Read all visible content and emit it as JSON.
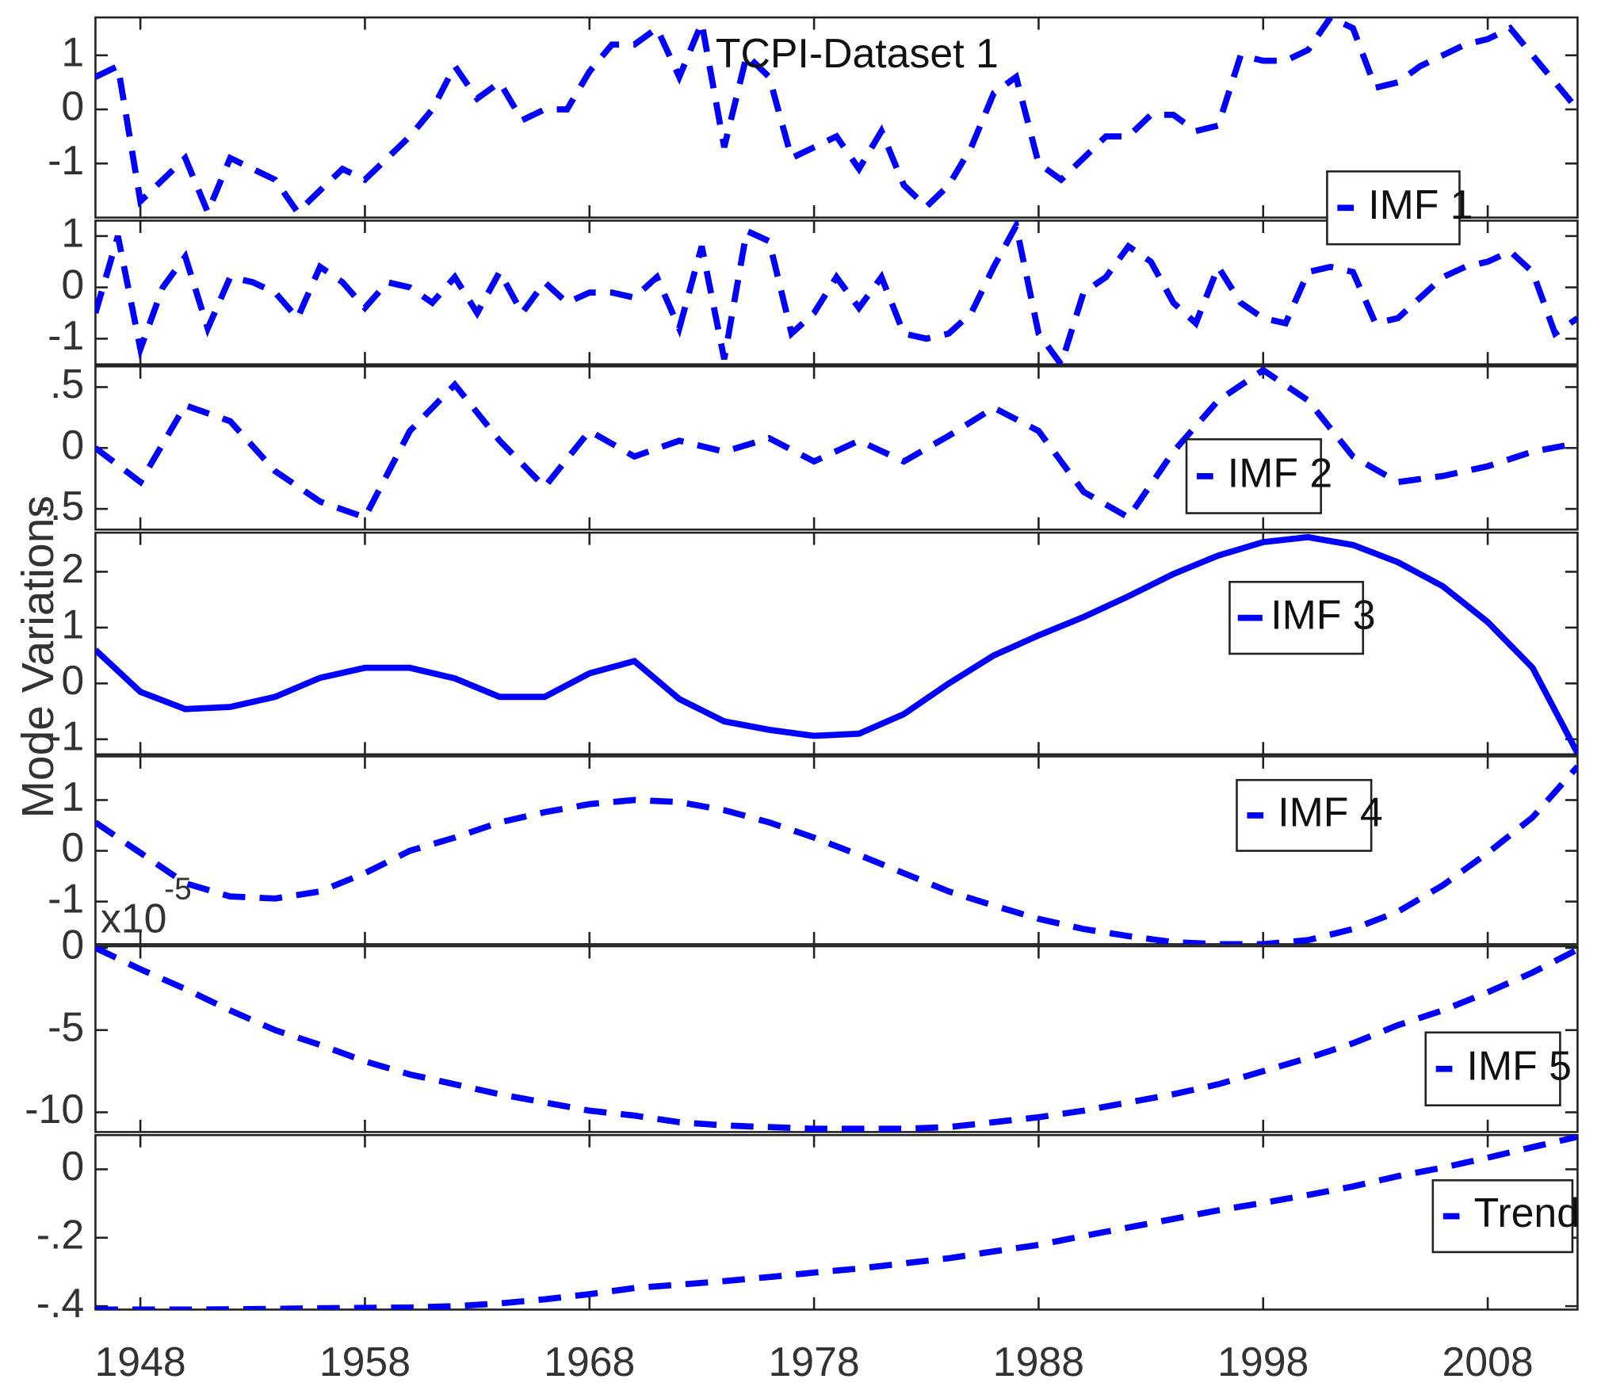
{
  "chart_data": [
    {
      "type": "line",
      "title": "TCPI-Dataset 1",
      "x": [
        1946,
        1947,
        1948,
        1949,
        1950,
        1951,
        1952,
        1953,
        1954,
        1955,
        1956,
        1957,
        1958,
        1959,
        1960,
        1961,
        1962,
        1963,
        1964,
        1965,
        1966,
        1967,
        1968,
        1969,
        1970,
        1971,
        1972,
        1973,
        1974,
        1975,
        1976,
        1977,
        1978,
        1979,
        1980,
        1981,
        1982,
        1983,
        1984,
        1985,
        1986,
        1987,
        1988,
        1989,
        1990,
        1991,
        1992,
        1993,
        1994,
        1995,
        1996,
        1997,
        1998,
        1999,
        2000,
        2001,
        2002,
        2003,
        2004,
        2005,
        2006,
        2007,
        2008,
        2009,
        2010,
        2011,
        2012
      ],
      "xlim": [
        1946,
        2012
      ],
      "ylim": [
        -2,
        1.7
      ],
      "yticks": [
        -1,
        0,
        1
      ],
      "series": [
        {
          "color": "#0000ff",
          "dash": "dashed",
          "values": [
            0.6,
            0.8,
            -1.7,
            -1.3,
            -0.9,
            -1.9,
            -0.9,
            -1.1,
            -1.3,
            -1.9,
            -1.5,
            -1.1,
            -1.3,
            -0.9,
            -0.5,
            0.0,
            0.8,
            0.2,
            0.5,
            -0.2,
            0.0,
            0.0,
            0.7,
            1.2,
            1.2,
            1.5,
            0.6,
            1.6,
            -0.7,
            1.0,
            0.6,
            -0.9,
            -0.7,
            -0.5,
            -1.1,
            -0.4,
            -1.4,
            -1.8,
            -1.4,
            -0.7,
            0.3,
            0.6,
            -1.0,
            -1.3,
            -0.9,
            -0.5,
            -0.5,
            -0.1,
            -0.1,
            -0.4,
            -0.3,
            1.0,
            0.9,
            0.9,
            1.1,
            1.7,
            1.5,
            0.4,
            0.5,
            0.8,
            1.0,
            1.2,
            1.3,
            1.5,
            1.0,
            0.5,
            0.0
          ]
        }
      ]
    },
    {
      "type": "line",
      "x": [
        1946,
        1947,
        1948,
        1949,
        1950,
        1951,
        1952,
        1953,
        1954,
        1955,
        1956,
        1957,
        1958,
        1959,
        1960,
        1961,
        1962,
        1963,
        1964,
        1965,
        1966,
        1967,
        1968,
        1969,
        1970,
        1971,
        1972,
        1973,
        1974,
        1975,
        1976,
        1977,
        1978,
        1979,
        1980,
        1981,
        1982,
        1983,
        1984,
        1985,
        1986,
        1987,
        1988,
        1989,
        1990,
        1991,
        1992,
        1993,
        1994,
        1995,
        1996,
        1997,
        1998,
        1999,
        2000,
        2001,
        2002,
        2003,
        2004,
        2005,
        2006,
        2007,
        2008,
        2009,
        2010,
        2011,
        2012
      ],
      "xlim": [
        1946,
        2012
      ],
      "ylim": [
        -1.5,
        1.3
      ],
      "yticks": [
        -1,
        0,
        1
      ],
      "series": [
        {
          "name": "IMF 1",
          "color": "#0000ff",
          "dash": "dashed",
          "values": [
            -0.5,
            1.0,
            -1.2,
            0.0,
            0.6,
            -0.8,
            0.2,
            0.1,
            -0.1,
            -0.6,
            0.4,
            0.1,
            -0.4,
            0.1,
            0.0,
            -0.3,
            0.2,
            -0.5,
            0.3,
            -0.5,
            0.1,
            -0.3,
            -0.1,
            -0.1,
            -0.2,
            0.2,
            -0.8,
            0.8,
            -1.4,
            1.1,
            0.9,
            -0.9,
            -0.5,
            0.2,
            -0.4,
            0.2,
            -0.9,
            -1.0,
            -0.9,
            -0.5,
            0.4,
            1.2,
            -0.9,
            -1.5,
            -0.1,
            0.2,
            0.8,
            0.5,
            -0.3,
            -0.7,
            0.4,
            -0.3,
            -0.6,
            -0.7,
            0.3,
            0.4,
            0.3,
            -0.7,
            -0.6,
            -0.2,
            0.2,
            0.4,
            0.5,
            0.7,
            0.3,
            -0.9,
            -0.6
          ]
        }
      ]
    },
    {
      "type": "line",
      "x": [
        1946,
        1948,
        1950,
        1952,
        1954,
        1956,
        1958,
        1960,
        1962,
        1964,
        1966,
        1968,
        1970,
        1972,
        1974,
        1976,
        1978,
        1980,
        1982,
        1984,
        1986,
        1988,
        1990,
        1992,
        1994,
        1996,
        1998,
        2000,
        2002,
        2004,
        2006,
        2008,
        2010,
        2012
      ],
      "xlim": [
        1946,
        2012
      ],
      "ylim": [
        -0.67,
        0.67
      ],
      "yticks": [
        {
          "value": -0.5,
          "label": "-.5"
        },
        0,
        {
          "value": 0.5,
          "label": ".5"
        }
      ],
      "series": [
        {
          "name": "IMF 2",
          "color": "#0000ff",
          "dash": "dashed",
          "values": [
            0,
            -0.28,
            0.35,
            0.22,
            -0.19,
            -0.44,
            -0.57,
            0.14,
            0.52,
            0.06,
            -0.32,
            0.14,
            -0.07,
            0.06,
            -0.03,
            0.08,
            -0.11,
            0.06,
            -0.11,
            0.1,
            0.33,
            0.14,
            -0.36,
            -0.57,
            -0.03,
            0.39,
            0.64,
            0.39,
            -0.07,
            -0.28,
            -0.23,
            -0.15,
            -0.03,
            0.04
          ]
        }
      ]
    },
    {
      "type": "line",
      "ylabel": "Mode Variations",
      "x": [
        1946,
        1948,
        1950,
        1952,
        1954,
        1956,
        1958,
        1960,
        1962,
        1964,
        1966,
        1968,
        1970,
        1972,
        1974,
        1976,
        1978,
        1980,
        1982,
        1984,
        1986,
        1988,
        1990,
        1992,
        1994,
        1996,
        1998,
        2000,
        2002,
        2004,
        2006,
        2008,
        2010,
        2012
      ],
      "xlim": [
        1946,
        2012
      ],
      "ylim": [
        -1.27,
        2.7
      ],
      "yticks": [
        -1,
        0,
        1,
        2
      ],
      "series": [
        {
          "name": "IMF 3",
          "color": "#0000ff",
          "dash": "solid",
          "values": [
            0.6,
            -0.15,
            -0.46,
            -0.42,
            -0.24,
            0.1,
            0.28,
            0.28,
            0.09,
            -0.24,
            -0.24,
            0.18,
            0.4,
            -0.28,
            -0.68,
            -0.83,
            -0.94,
            -0.9,
            -0.55,
            0,
            0.5,
            0.86,
            1.19,
            1.56,
            1.96,
            2.29,
            2.53,
            2.62,
            2.48,
            2.17,
            1.74,
            1.1,
            0.28,
            -1.25
          ]
        }
      ]
    },
    {
      "type": "line",
      "x": [
        1946,
        1948,
        1950,
        1952,
        1954,
        1956,
        1958,
        1960,
        1962,
        1964,
        1966,
        1968,
        1970,
        1972,
        1974,
        1976,
        1978,
        1980,
        1982,
        1984,
        1986,
        1988,
        1990,
        1992,
        1994,
        1996,
        1998,
        2000,
        2002,
        2004,
        2006,
        2008,
        2010,
        2012
      ],
      "xlim": [
        1946,
        2012
      ],
      "ylim": [
        -1.84,
        1.86
      ],
      "yticks": [
        -1,
        0,
        1
      ],
      "series": [
        {
          "name": "IMF 4",
          "color": "#0000ff",
          "dash": "dashed",
          "values": [
            0.56,
            -0.04,
            -0.64,
            -0.9,
            -0.94,
            -0.8,
            -0.44,
            0,
            0.26,
            0.56,
            0.76,
            0.92,
            1.0,
            0.96,
            0.8,
            0.56,
            0.26,
            -0.08,
            -0.44,
            -0.8,
            -1.08,
            -1.34,
            -1.54,
            -1.68,
            -1.8,
            -1.84,
            -1.84,
            -1.76,
            -1.54,
            -1.2,
            -0.68,
            -0.04,
            0.66,
            1.66
          ]
        }
      ]
    },
    {
      "type": "line",
      "multiplier": "x10",
      "exponent": "-5",
      "x": [
        1946,
        1948,
        1950,
        1952,
        1954,
        1956,
        1958,
        1960,
        1962,
        1964,
        1966,
        1968,
        1970,
        1972,
        1974,
        1976,
        1978,
        1980,
        1982,
        1984,
        1986,
        1988,
        1990,
        1992,
        1994,
        1996,
        1998,
        2000,
        2002,
        2004,
        2006,
        2008,
        2010,
        2012
      ],
      "xlim": [
        1946,
        2012
      ],
      "ylim": [
        -11.2,
        0.1
      ],
      "yticks": [
        -10,
        -5,
        0
      ],
      "series": [
        {
          "name": "IMF 5",
          "color": "#0000ff",
          "dash": "dashed",
          "values": [
            0,
            -1.3,
            -2.5,
            -3.8,
            -5.0,
            -5.9,
            -6.9,
            -7.7,
            -8.3,
            -8.9,
            -9.4,
            -9.9,
            -10.2,
            -10.6,
            -10.8,
            -10.9,
            -11.0,
            -11.0,
            -11.0,
            -10.9,
            -10.6,
            -10.3,
            -9.9,
            -9.4,
            -8.9,
            -8.3,
            -7.5,
            -6.7,
            -5.8,
            -4.7,
            -3.8,
            -2.7,
            -1.5,
            -0.1
          ]
        }
      ]
    },
    {
      "type": "line",
      "x": [
        1946,
        1948,
        1950,
        1952,
        1954,
        1956,
        1958,
        1960,
        1962,
        1964,
        1966,
        1968,
        1970,
        1972,
        1974,
        1976,
        1978,
        1980,
        1982,
        1984,
        1986,
        1988,
        1990,
        1992,
        1994,
        1996,
        1998,
        2000,
        2002,
        2004,
        2006,
        2008,
        2010,
        2012
      ],
      "xlim": [
        1946,
        2012
      ],
      "ylim": [
        -0.41,
        0.1
      ],
      "yticks": [
        {
          "value": -0.4,
          "label": "-.4"
        },
        {
          "value": -0.2,
          "label": "-.2"
        },
        0
      ],
      "xticks": [
        1948,
        1958,
        1968,
        1978,
        1988,
        1998,
        2008
      ],
      "series": [
        {
          "name": "Trend",
          "color": "#0000ff",
          "dash": "dashed",
          "values": [
            -0.41,
            -0.41,
            -0.41,
            -0.409,
            -0.408,
            -0.406,
            -0.405,
            -0.404,
            -0.4,
            -0.392,
            -0.38,
            -0.365,
            -0.347,
            -0.337,
            -0.327,
            -0.315,
            -0.302,
            -0.29,
            -0.275,
            -0.26,
            -0.24,
            -0.221,
            -0.195,
            -0.17,
            -0.145,
            -0.12,
            -0.098,
            -0.075,
            -0.05,
            -0.02,
            0.005,
            0.034,
            0.065,
            0.095
          ]
        }
      ]
    }
  ]
}
